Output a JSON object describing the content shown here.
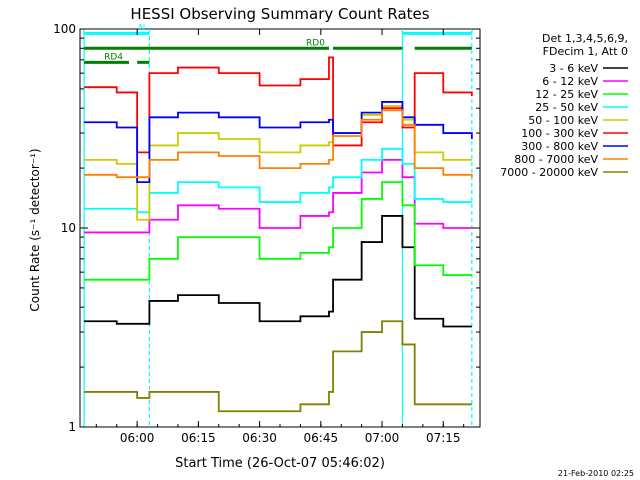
{
  "chart_data": {
    "type": "line",
    "title": "HESSI Observing Summary Count Rates",
    "xlabel": "Start Time (26-Oct-07 05:46:02)",
    "ylabel": "Count Rate (s⁻¹ detector⁻¹)",
    "y_scale": "log",
    "ylim": [
      1,
      100
    ],
    "xlim": [
      "05:46",
      "07:24"
    ],
    "x_ticks": [
      "06:00",
      "06:15",
      "06:30",
      "06:45",
      "07:00",
      "07:15"
    ],
    "y_ticks": [
      "1",
      "10",
      "100"
    ],
    "legend_position": "top-right",
    "legend_header": [
      "Det 1,3,4,5,6,9,",
      "FDecim 1, Att 0"
    ],
    "x": [
      "05:47",
      "05:55",
      "05:58",
      "06:00",
      "06:03",
      "06:10",
      "06:20",
      "06:30",
      "06:40",
      "06:47",
      "06:48",
      "06:55",
      "07:00",
      "07:05",
      "07:08",
      "07:15",
      "07:22"
    ],
    "series": [
      {
        "name": "3 - 6 keV",
        "color": "#000000",
        "values": [
          3.4,
          3.3,
          3.3,
          3.3,
          4.3,
          4.6,
          4.2,
          3.4,
          3.6,
          3.8,
          5.5,
          8.5,
          11.5,
          8.0,
          3.5,
          3.2,
          3.2
        ]
      },
      {
        "name": "6 - 12 keV",
        "color": "#ff00ff",
        "values": [
          9.5,
          9.5,
          9.5,
          9.5,
          11.0,
          13.0,
          12.5,
          10.0,
          11.5,
          12.0,
          15.0,
          19.0,
          22.0,
          18.0,
          10.5,
          10.0,
          10.0
        ]
      },
      {
        "name": "12 - 25 keV",
        "color": "#00ff00",
        "values": [
          5.5,
          5.5,
          5.5,
          5.5,
          7.0,
          9.0,
          9.0,
          7.0,
          7.5,
          8.0,
          10.0,
          14.0,
          17.0,
          13.0,
          6.5,
          5.8,
          5.8
        ]
      },
      {
        "name": "25 - 50 keV",
        "color": "#00ffff",
        "values": [
          12.5,
          12.5,
          12.5,
          12.0,
          15.0,
          17.0,
          16.0,
          13.5,
          15.0,
          16.0,
          18.0,
          22.0,
          25.0,
          21.0,
          14.0,
          13.5,
          13.5
        ]
      },
      {
        "name": "50 - 100 keV",
        "color": "#cccc00",
        "values": [
          22.0,
          21.0,
          21.0,
          11.0,
          26.0,
          30.0,
          28.0,
          24.0,
          26.0,
          27.0,
          30.0,
          37.0,
          41.0,
          35.0,
          24.0,
          22.0,
          22.0
        ]
      },
      {
        "name": "100 - 300 keV",
        "color": "#ff0000",
        "values": [
          51.0,
          48.0,
          48.0,
          24.0,
          60.0,
          64.0,
          60.0,
          52.0,
          56.0,
          72.0,
          26.0,
          34.0,
          40.0,
          32.0,
          60.0,
          48.0,
          46.0
        ]
      },
      {
        "name": "300 - 800 keV",
        "color": "#0000ff",
        "values": [
          34.0,
          32.0,
          32.0,
          17.0,
          36.0,
          38.0,
          36.0,
          32.0,
          34.0,
          35.0,
          30.0,
          38.0,
          43.0,
          36.0,
          33.0,
          30.0,
          28.0
        ]
      },
      {
        "name": "800 - 7000 keV",
        "color": "#ff8000",
        "values": [
          18.5,
          18.0,
          18.0,
          18.0,
          22.0,
          24.0,
          23.0,
          20.0,
          21.0,
          22.0,
          29.0,
          35.0,
          39.0,
          33.0,
          20.0,
          18.5,
          18.0
        ]
      },
      {
        "name": "7000 - 20000 keV",
        "color": "#808000",
        "values": [
          1.5,
          1.5,
          1.5,
          1.4,
          1.5,
          1.5,
          1.2,
          1.2,
          1.3,
          1.5,
          2.4,
          3.0,
          3.4,
          2.6,
          1.3,
          1.3,
          1.3
        ]
      }
    ],
    "flags": [
      {
        "label": "N",
        "color": "#00ffff",
        "value": 95,
        "intervals": [
          [
            "05:47",
            "06:03"
          ],
          [
            "07:05",
            "07:22"
          ]
        ]
      },
      {
        "label": "RD0",
        "color": "#008000",
        "value": 80,
        "intervals": [
          [
            "05:47",
            "06:47"
          ],
          [
            "06:48",
            "07:05"
          ],
          [
            "07:08",
            "07:22"
          ]
        ]
      },
      {
        "label": "RD4",
        "color": "#008000",
        "value": 68,
        "intervals": [
          [
            "05:47",
            "05:58"
          ],
          [
            "06:00",
            "06:03"
          ]
        ]
      }
    ],
    "markers": {
      "color": "#00ffff",
      "times": [
        "05:47",
        "06:03",
        "07:05",
        "07:22"
      ],
      "solid": [
        true,
        false,
        true,
        false
      ]
    }
  },
  "footer": {
    "generated": "21-Feb-2010 02:25"
  }
}
